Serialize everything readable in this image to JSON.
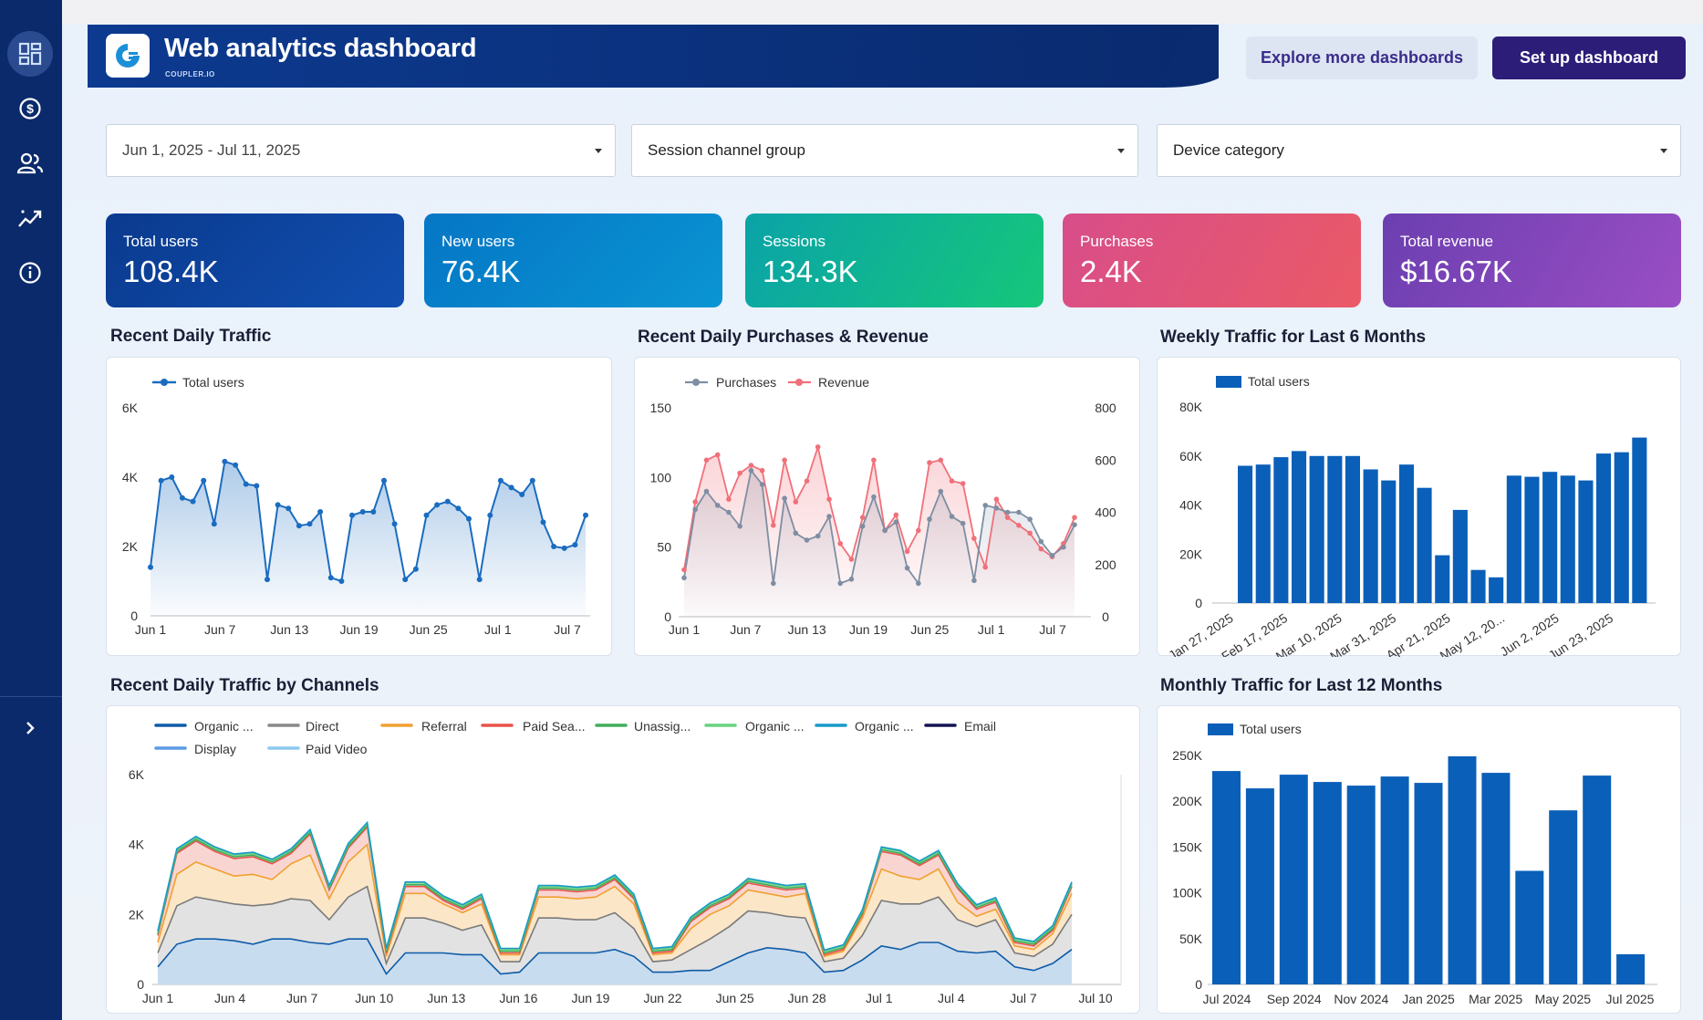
{
  "app": {
    "title": "Web analytics dashboard",
    "brand": "COUPLER.IO",
    "explore_label": "Explore more dashboards",
    "setup_label": "Set up dashboard"
  },
  "sidebar": {
    "items": [
      {
        "name": "dashboard-icon"
      },
      {
        "name": "dollar-icon"
      },
      {
        "name": "users-icon"
      },
      {
        "name": "trend-icon"
      },
      {
        "name": "info-icon"
      }
    ],
    "expand": "chevron-right-icon"
  },
  "filters": {
    "date": "Jun 1, 2025 - Jul 11, 2025",
    "channel": "Session channel group",
    "device": "Device category"
  },
  "kpis": [
    {
      "label": "Total users",
      "value": "108.4K"
    },
    {
      "label": "New users",
      "value": "76.4K"
    },
    {
      "label": "Sessions",
      "value": "134.3K"
    },
    {
      "label": "Purchases",
      "value": "2.4K"
    },
    {
      "label": "Total revenue",
      "value": "$16.67K"
    }
  ],
  "colors": {
    "sidebar": "#0b2a6b",
    "header": "#0d3a8c",
    "bar_blue": "#0a5fb8",
    "line_blue": "#1a6cc0",
    "purchases_gray": "#7e8ea3",
    "revenue_red": "#f0707a"
  },
  "sections": {
    "daily_traffic": "Recent Daily Traffic",
    "purchases_revenue": "Recent Daily Purchases & Revenue",
    "weekly": "Weekly Traffic for Last 6 Months",
    "channels": "Recent Daily Traffic by Channels",
    "monthly": "Monthly Traffic for Last 12 Months"
  },
  "chart_data": [
    {
      "id": "daily_traffic",
      "type": "line",
      "title": "Recent Daily Traffic",
      "legend": [
        "Total users"
      ],
      "x_ticks": [
        "Jun 1",
        "Jun 7",
        "Jun 13",
        "Jun 19",
        "Jun 25",
        "Jul 1",
        "Jul 7"
      ],
      "y_ticks": [
        "0",
        "2K",
        "4K",
        "6K"
      ],
      "ylim": [
        0,
        6000
      ],
      "values": [
        1400,
        3900,
        4000,
        3400,
        3300,
        3900,
        2650,
        4450,
        4350,
        3800,
        3750,
        1050,
        3200,
        3100,
        2600,
        2650,
        3000,
        1100,
        1000,
        2900,
        3000,
        3000,
        3900,
        2650,
        1050,
        1350,
        2900,
        3200,
        3300,
        3100,
        2800,
        1050,
        2900,
        3900,
        3700,
        3500,
        3900,
        2700,
        2000,
        1950,
        2050,
        2900
      ]
    },
    {
      "id": "purchases_revenue",
      "type": "line",
      "title": "Recent Daily Purchases & Revenue",
      "legend": [
        "Purchases",
        "Revenue"
      ],
      "x_ticks": [
        "Jun 1",
        "Jun 7",
        "Jun 13",
        "Jun 19",
        "Jun 25",
        "Jul 1",
        "Jul 7"
      ],
      "y_left_ticks": [
        "0",
        "50",
        "100",
        "150"
      ],
      "y_right_ticks": [
        "0",
        "200",
        "400",
        "600",
        "800"
      ],
      "ylim_left": [
        0,
        150
      ],
      "ylim_right": [
        0,
        800
      ],
      "purchases": [
        28,
        77,
        90,
        80,
        75,
        65,
        105,
        95,
        24,
        85,
        60,
        55,
        58,
        72,
        24,
        27,
        65,
        86,
        62,
        68,
        35,
        24,
        70,
        90,
        72,
        67,
        26,
        80,
        78,
        75,
        75,
        70,
        54,
        44,
        50,
        66
      ],
      "revenue": [
        180,
        440,
        600,
        620,
        450,
        550,
        580,
        560,
        350,
        600,
        440,
        520,
        650,
        450,
        280,
        220,
        380,
        600,
        330,
        390,
        250,
        330,
        590,
        600,
        520,
        510,
        300,
        190,
        450,
        380,
        350,
        320,
        260,
        230,
        280,
        380
      ]
    },
    {
      "id": "weekly",
      "type": "bar",
      "title": "Weekly Traffic for Last 6 Months",
      "legend": [
        "Total users"
      ],
      "x_ticks": [
        "Jan 27, 2025",
        "Feb 17, 2025",
        "Mar 10, 2025",
        "Mar 31, 2025",
        "Apr 21, 2025",
        "May 12, 20...",
        "Jun 2, 2025",
        "Jun 23, 2025"
      ],
      "y_ticks": [
        "0",
        "20K",
        "40K",
        "60K",
        "80K"
      ],
      "ylim": [
        0,
        80000
      ],
      "values": [
        56000,
        56500,
        59500,
        62000,
        60000,
        60000,
        60000,
        54500,
        50000,
        56500,
        47000,
        19500,
        38000,
        13500,
        10500,
        52000,
        51500,
        53500,
        52000,
        50000,
        61000,
        61500,
        67500
      ]
    },
    {
      "id": "channels",
      "type": "area",
      "title": "Recent Daily Traffic by Channels",
      "legend": [
        "Organic ...",
        "Direct",
        "Referral",
        "Paid Sea...",
        "Unassig...",
        "Organic ...",
        "Organic ...",
        "Email",
        "Display",
        "Paid Video"
      ],
      "x_ticks": [
        "Jun 1",
        "Jun 4",
        "Jun 7",
        "Jun 10",
        "Jun 13",
        "Jun 16",
        "Jun 19",
        "Jun 22",
        "Jun 25",
        "Jun 28",
        "Jul 1",
        "Jul 4",
        "Jul 7",
        "Jul 10"
      ],
      "y_ticks": [
        "0",
        "2K",
        "4K",
        "6K"
      ],
      "ylim": [
        0,
        6000
      ],
      "series": [
        {
          "name": "Organic ...",
          "values": [
            500,
            1150,
            1300,
            1300,
            1250,
            1150,
            1300,
            1300,
            1200,
            1150,
            1300,
            1300,
            300,
            900,
            900,
            900,
            850,
            850,
            300,
            350,
            900,
            900,
            900,
            900,
            1000,
            800,
            350,
            350,
            400,
            400,
            650,
            900,
            1050,
            1000,
            900,
            350,
            400,
            700,
            1100,
            1000,
            1200,
            1200,
            950,
            900,
            950,
            500,
            400,
            600,
            1000
          ]
        },
        {
          "name": "Direct",
          "values": [
            400,
            1100,
            1200,
            1100,
            1050,
            1100,
            1000,
            1150,
            1200,
            700,
            1200,
            1500,
            300,
            1000,
            1000,
            850,
            700,
            850,
            350,
            300,
            1000,
            1000,
            950,
            950,
            1050,
            800,
            300,
            350,
            600,
            900,
            1000,
            1200,
            1000,
            950,
            1000,
            300,
            350,
            700,
            1300,
            1300,
            1100,
            1300,
            900,
            750,
            900,
            400,
            400,
            550,
            1000
          ]
        },
        {
          "name": "Referral",
          "values": [
            300,
            900,
            1000,
            900,
            800,
            900,
            700,
            1000,
            1300,
            600,
            1000,
            1200,
            200,
            700,
            700,
            550,
            500,
            600,
            200,
            200,
            600,
            600,
            600,
            650,
            750,
            700,
            200,
            200,
            600,
            700,
            600,
            600,
            550,
            550,
            700,
            150,
            200,
            500,
            900,
            800,
            700,
            800,
            500,
            300,
            300,
            200,
            200,
            300,
            600
          ]
        },
        {
          "name": "Paid Sea...",
          "values": [
            200,
            600,
            600,
            500,
            500,
            500,
            450,
            300,
            600,
            250,
            400,
            500,
            100,
            200,
            200,
            100,
            100,
            150,
            50,
            50,
            200,
            200,
            200,
            200,
            200,
            150,
            50,
            50,
            200,
            200,
            200,
            200,
            200,
            200,
            150,
            50,
            50,
            100,
            500,
            600,
            400,
            400,
            400,
            200,
            200,
            100,
            100,
            100,
            200
          ]
        },
        {
          "name": "Unassig...",
          "values": [
            50,
            50,
            50,
            50,
            50,
            50,
            50,
            50,
            50,
            50,
            50,
            50,
            50,
            50,
            50,
            50,
            50,
            50,
            50,
            50,
            50,
            50,
            50,
            50,
            50,
            50,
            50,
            50,
            50,
            50,
            50,
            50,
            50,
            50,
            50,
            50,
            50,
            50,
            50,
            50,
            50,
            50,
            50,
            50,
            50,
            50,
            50,
            50,
            50
          ]
        },
        {
          "name": "Organic ...",
          "values": [
            50,
            50,
            50,
            50,
            50,
            50,
            50,
            50,
            50,
            50,
            50,
            50,
            50,
            50,
            50,
            50,
            50,
            50,
            50,
            50,
            50,
            50,
            50,
            50,
            50,
            50,
            50,
            50,
            50,
            50,
            50,
            50,
            50,
            50,
            50,
            50,
            50,
            50,
            50,
            50,
            50,
            50,
            50,
            50,
            50,
            50,
            50,
            50,
            50
          ]
        },
        {
          "name": "Organic ...",
          "values": [
            30,
            30,
            30,
            30,
            30,
            30,
            30,
            30,
            30,
            30,
            30,
            30,
            30,
            30,
            30,
            30,
            30,
            30,
            30,
            30,
            30,
            30,
            30,
            30,
            30,
            30,
            30,
            30,
            30,
            30,
            30,
            30,
            30,
            30,
            30,
            30,
            30,
            30,
            30,
            30,
            30,
            30,
            30,
            30,
            30,
            30,
            30,
            30,
            30
          ]
        }
      ]
    },
    {
      "id": "monthly",
      "type": "bar",
      "title": "Monthly Traffic for Last 12 Months",
      "legend": [
        "Total users"
      ],
      "x_ticks": [
        "Jul 2024",
        "Sep 2024",
        "Nov 2024",
        "Jan 2025",
        "Mar 2025",
        "May 2025",
        "Jul 2025"
      ],
      "y_ticks": [
        "0",
        "50K",
        "100K",
        "150K",
        "200K",
        "250K"
      ],
      "ylim": [
        0,
        250000
      ],
      "values": [
        233000,
        214000,
        229000,
        221000,
        217000,
        227000,
        220000,
        249000,
        231000,
        124000,
        190000,
        228000,
        33000
      ]
    }
  ]
}
